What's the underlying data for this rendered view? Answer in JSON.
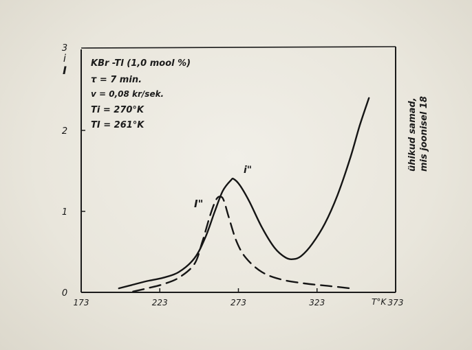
{
  "chart_data": {
    "type": "line",
    "title": "",
    "xlabel": "T°K",
    "ylabel": "",
    "xlim": [
      173,
      373
    ],
    "ylim": [
      0,
      3
    ],
    "x_ticks": [
      "173",
      "223",
      "273",
      "323",
      "373"
    ],
    "y_ticks": [
      "0",
      "1",
      "2",
      "3"
    ],
    "y_axis_extra_labels": [
      "i",
      "I"
    ],
    "right_axis_label": [
      "ühikud samad,",
      "mis joonisel 18"
    ],
    "annotations": [
      "KBr -Tl (1,0 mool %)",
      "τ = 7 min.",
      "v = 0,08 kr/sek.",
      "Ti = 270°K",
      "TI = 261°K"
    ],
    "series": [
      {
        "name": "i\"",
        "style": "solid",
        "x": [
          197,
          205,
          215,
          225,
          235,
          245,
          252,
          258,
          263,
          268,
          270,
          274,
          280,
          288,
          296,
          303,
          308,
          313,
          320,
          328,
          336,
          344,
          350,
          356
        ],
        "y": [
          0.05,
          0.09,
          0.14,
          0.18,
          0.25,
          0.42,
          0.68,
          1.0,
          1.25,
          1.38,
          1.4,
          1.32,
          1.12,
          0.8,
          0.55,
          0.43,
          0.41,
          0.45,
          0.6,
          0.85,
          1.2,
          1.65,
          2.05,
          2.4
        ]
      },
      {
        "name": "I\"",
        "style": "dashed",
        "x": [
          206,
          215,
          225,
          235,
          245,
          250,
          255,
          259,
          262,
          264,
          267,
          272,
          278,
          288,
          300,
          315,
          330,
          344
        ],
        "y": [
          0.01,
          0.05,
          0.1,
          0.18,
          0.35,
          0.62,
          0.95,
          1.15,
          1.18,
          1.12,
          0.92,
          0.62,
          0.42,
          0.25,
          0.16,
          0.11,
          0.08,
          0.05
        ]
      }
    ]
  }
}
